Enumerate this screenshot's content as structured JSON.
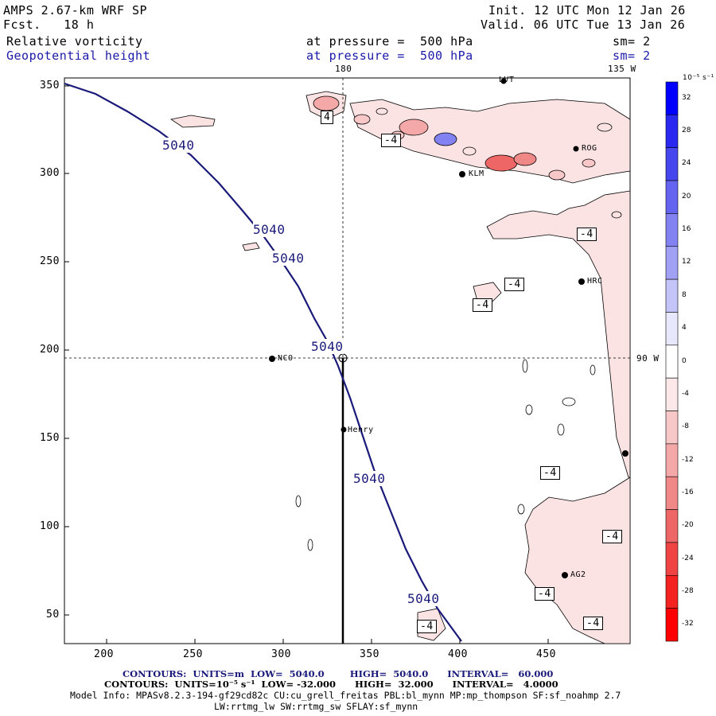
{
  "header": {
    "model": "AMPS 2.67-km WRF SP",
    "forecast": "Fcst.   18 h",
    "init": "Init. 12 UTC Mon 12 Jan 26",
    "valid": "Valid. 06 UTC Tue 13 Jan 26",
    "field1": "Relative vorticity",
    "field2": "Geopotential height",
    "pressure1": "at pressure =  500 hPa",
    "pressure2": "at pressure =  500 hPa",
    "sm1": "sm= 2",
    "sm2": "sm= 2"
  },
  "map": {
    "top_longitude_labels": [
      "180",
      "135 W"
    ],
    "right_longitude_label": "90 W",
    "x_ticks": [
      "200",
      "250",
      "300",
      "350",
      "400",
      "450"
    ],
    "y_ticks": [
      "350",
      "300",
      "250",
      "200",
      "150",
      "100",
      "50"
    ],
    "stations": [
      "LVT",
      "ROG",
      "KLM",
      "HRC",
      "NCO",
      "Henry",
      "AG2"
    ],
    "height_contour_label": "5040",
    "vorticity_labels": [
      "4",
      "-4"
    ]
  },
  "colorbar": {
    "units": "10⁻⁵ s⁻¹",
    "labels": [
      "32",
      "28",
      "24",
      "20",
      "16",
      "12",
      "8",
      "4",
      "0",
      "-4",
      "-8",
      "-12",
      "-16",
      "-20",
      "-24",
      "-28",
      "-32"
    ],
    "colors": [
      "#0000ff",
      "#2828f0",
      "#4646ee",
      "#6464f0",
      "#8282f2",
      "#a0a0f5",
      "#c4c4f8",
      "#e8e8fc",
      "#ffffff",
      "#fce8e8",
      "#f8c8c8",
      "#f4a8a8",
      "#f08888",
      "#ee6666",
      "#f04444",
      "#f52222",
      "#ff0000"
    ]
  },
  "footer": {
    "line1": "CONTOURS:  UNITS=m  LOW=  5040.0        HIGH=  5040.0      INTERVAL=   60.000",
    "line2": "CONTOURS:  UNITS=10⁻⁵ s⁻¹  LOW= -32.000      HIGH=  32.000      INTERVAL=   4.0000",
    "line3": "Model Info: MPASv8.2.3-194-gf29cd82c CU:cu_grell_freitas PBL:bl_mynn MP:mp_thompson SF:sf_noahmp 2.7",
    "line4": "LW:rrtmg_lw SW:rrtmg_sw SFLAY:sf_mynn"
  }
}
